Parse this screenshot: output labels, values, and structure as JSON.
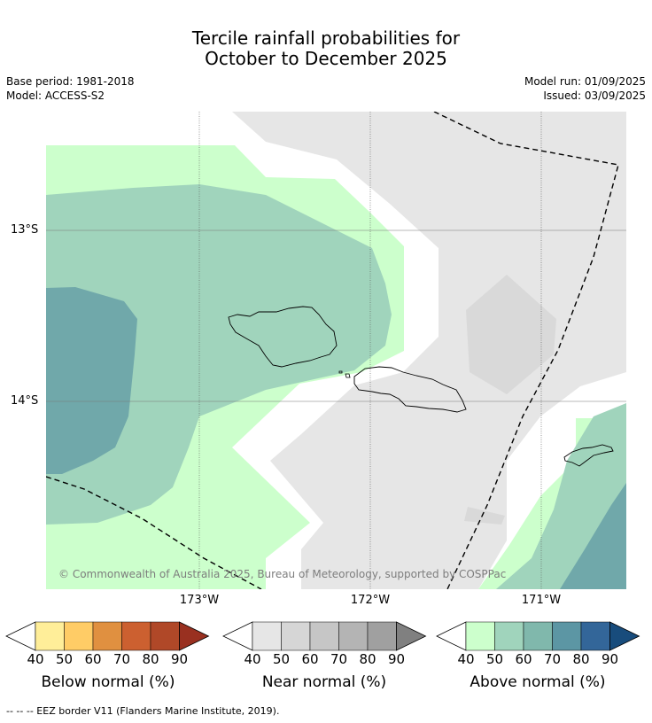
{
  "title_line1": "Tercile rainfall probabilities for",
  "title_line2": "October to December 2025",
  "base_period": "Base period: 1981-2018",
  "model": "Model: ACCESS-S2",
  "model_run": "Model run: 01/09/2025",
  "issued": "Issued: 03/09/2025",
  "lon_labels": [
    "173°W",
    "172°W",
    "171°W"
  ],
  "lat_labels": [
    "13°S",
    "14°S"
  ],
  "copyright": "© Commonwealth of Australia 2025, Bureau of Meteorology, supported by COSPPac",
  "colorbars": [
    {
      "label": "Below normal (%)",
      "ticks": [
        "40",
        "50",
        "60",
        "70",
        "80",
        "90"
      ],
      "colors": [
        "#ffee99",
        "#ffcc66",
        "#e09040",
        "#cc6030",
        "#b04828",
        "#993020"
      ]
    },
    {
      "label": "Near normal (%)",
      "ticks": [
        "40",
        "50",
        "60",
        "70",
        "80",
        "90"
      ],
      "colors": [
        "#e6e6e6",
        "#d6d6d6",
        "#c6c6c6",
        "#b4b4b4",
        "#a0a0a0",
        "#808080"
      ]
    },
    {
      "label": "Above normal (%)",
      "ticks": [
        "40",
        "50",
        "60",
        "70",
        "80",
        "90"
      ],
      "colors": [
        "#ccffcc",
        "#a0d4bc",
        "#80b8ac",
        "#5c96a4",
        "#336699",
        "#184c7c"
      ]
    }
  ],
  "footnote": "-- -- -- EEZ border V11 (Flanders Marine Institute, 2019)."
}
